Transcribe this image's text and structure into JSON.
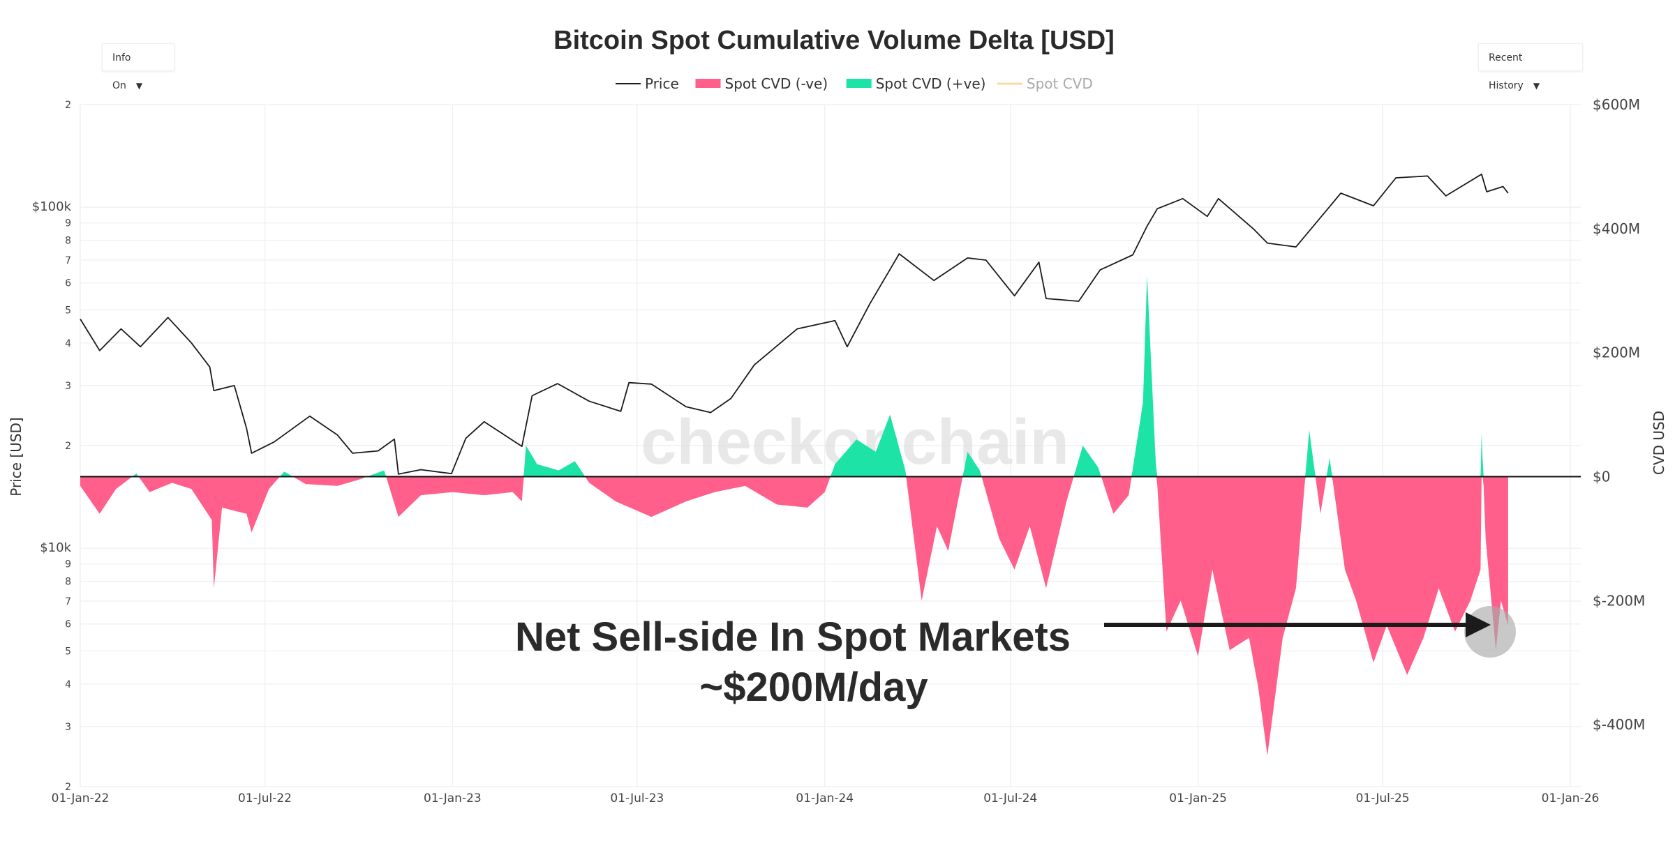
{
  "controls": {
    "info_label": "Info On",
    "history_label": "Recent History",
    "caret": "▼"
  },
  "chart_data": {
    "type": "area",
    "title": "Bitcoin Spot Cumulative Volume Delta [USD]",
    "watermark": "checkonchain",
    "legend": [
      {
        "name": "Price",
        "color": "#1a1a1a",
        "style": "line",
        "active": true
      },
      {
        "name": "Spot CVD (-ve)",
        "color": "#ff5f8a",
        "style": "bar",
        "active": true
      },
      {
        "name": "Spot CVD (+ve)",
        "color": "#1ee3a6",
        "style": "bar",
        "active": true
      },
      {
        "name": "Spot CVD",
        "color": "#fcd9a8",
        "style": "line",
        "active": false
      }
    ],
    "legend_position": "top-center",
    "grid": true,
    "x_axis": {
      "ticks": [
        "01-Jan-22",
        "01-Jul-22",
        "01-Jan-23",
        "01-Jul-23",
        "01-Jan-24",
        "01-Jul-24",
        "01-Jan-25",
        "01-Jul-25",
        "01-Jan-26"
      ]
    },
    "y_left": {
      "label": "Price [USD]",
      "scale": "log",
      "range": [
        2000,
        200000
      ],
      "ticks": [
        {
          "v": 2000,
          "t": "2"
        },
        {
          "v": 3000,
          "t": "3"
        },
        {
          "v": 4000,
          "t": "4"
        },
        {
          "v": 5000,
          "t": "5"
        },
        {
          "v": 6000,
          "t": "6"
        },
        {
          "v": 7000,
          "t": "7"
        },
        {
          "v": 8000,
          "t": "8"
        },
        {
          "v": 9000,
          "t": "9"
        },
        {
          "v": 10000,
          "t": "$10k"
        },
        {
          "v": 20000,
          "t": "2"
        },
        {
          "v": 30000,
          "t": "3"
        },
        {
          "v": 40000,
          "t": "4"
        },
        {
          "v": 50000,
          "t": "5"
        },
        {
          "v": 60000,
          "t": "6"
        },
        {
          "v": 70000,
          "t": "7"
        },
        {
          "v": 80000,
          "t": "8"
        },
        {
          "v": 90000,
          "t": "9"
        },
        {
          "v": 100000,
          "t": "$100k"
        },
        {
          "v": 200000,
          "t": "2"
        }
      ]
    },
    "y_right": {
      "label": "CVD USD",
      "range": [
        -500000000,
        600000000
      ],
      "ticks": [
        {
          "v": 600000000,
          "t": "$600M"
        },
        {
          "v": 400000000,
          "t": "$400M"
        },
        {
          "v": 200000000,
          "t": "$200M"
        },
        {
          "v": 0,
          "t": "$0"
        },
        {
          "v": -200000000,
          "t": "$-200M"
        },
        {
          "v": -400000000,
          "t": "$-400M"
        }
      ]
    },
    "price_series": {
      "name": "Price",
      "points": [
        [
          "2022-01-01",
          47000
        ],
        [
          "2022-01-20",
          38000
        ],
        [
          "2022-02-10",
          44000
        ],
        [
          "2022-03-01",
          39000
        ],
        [
          "2022-03-28",
          47500
        ],
        [
          "2022-04-20",
          40000
        ],
        [
          "2022-05-08",
          34000
        ],
        [
          "2022-05-12",
          29000
        ],
        [
          "2022-06-01",
          30000
        ],
        [
          "2022-06-13",
          22500
        ],
        [
          "2022-06-18",
          19000
        ],
        [
          "2022-07-10",
          20500
        ],
        [
          "2022-08-14",
          24400
        ],
        [
          "2022-09-10",
          21500
        ],
        [
          "2022-09-25",
          19000
        ],
        [
          "2022-10-20",
          19300
        ],
        [
          "2022-11-05",
          20900
        ],
        [
          "2022-11-09",
          16500
        ],
        [
          "2022-12-01",
          17000
        ],
        [
          "2022-12-31",
          16550
        ],
        [
          "2023-01-14",
          21000
        ],
        [
          "2023-02-01",
          23500
        ],
        [
          "2023-03-10",
          19900
        ],
        [
          "2023-03-20",
          28000
        ],
        [
          "2023-04-14",
          30400
        ],
        [
          "2023-05-15",
          27000
        ],
        [
          "2023-06-15",
          25200
        ],
        [
          "2023-06-23",
          30600
        ],
        [
          "2023-07-15",
          30300
        ],
        [
          "2023-08-18",
          26000
        ],
        [
          "2023-09-11",
          25000
        ],
        [
          "2023-10-01",
          27500
        ],
        [
          "2023-10-24",
          34500
        ],
        [
          "2023-12-05",
          44000
        ],
        [
          "2024-01-11",
          46500
        ],
        [
          "2024-01-23",
          39000
        ],
        [
          "2024-02-14",
          52000
        ],
        [
          "2024-03-14",
          73000
        ],
        [
          "2024-04-17",
          61000
        ],
        [
          "2024-05-20",
          71000
        ],
        [
          "2024-06-07",
          70000
        ],
        [
          "2024-07-05",
          55000
        ],
        [
          "2024-07-29",
          69000
        ],
        [
          "2024-08-05",
          54000
        ],
        [
          "2024-09-06",
          53000
        ],
        [
          "2024-09-27",
          65500
        ],
        [
          "2024-10-29",
          72500
        ],
        [
          "2024-11-12",
          88000
        ],
        [
          "2024-11-22",
          99000
        ],
        [
          "2024-12-17",
          106000
        ],
        [
          "2025-01-10",
          94000
        ],
        [
          "2025-01-21",
          106000
        ],
        [
          "2025-02-25",
          86000
        ],
        [
          "2025-03-10",
          78500
        ],
        [
          "2025-04-07",
          76500
        ],
        [
          "2025-05-21",
          110000
        ],
        [
          "2025-06-22",
          101000
        ],
        [
          "2025-07-14",
          122000
        ],
        [
          "2025-08-14",
          123500
        ],
        [
          "2025-09-01",
          108000
        ],
        [
          "2025-10-06",
          125000
        ],
        [
          "2025-10-11",
          111000
        ],
        [
          "2025-10-27",
          115000
        ],
        [
          "2025-11-01",
          110000
        ]
      ]
    },
    "cvd_series": {
      "name": "Spot CVD",
      "unit": "USD",
      "points": [
        [
          "2022-01-01",
          -15000000
        ],
        [
          "2022-01-20",
          -60000000
        ],
        [
          "2022-02-05",
          -20000000
        ],
        [
          "2022-02-25",
          5000000
        ],
        [
          "2022-03-10",
          -25000000
        ],
        [
          "2022-04-01",
          -10000000
        ],
        [
          "2022-04-20",
          -20000000
        ],
        [
          "2022-05-10",
          -70000000
        ],
        [
          "2022-05-12",
          -180000000
        ],
        [
          "2022-05-20",
          -50000000
        ],
        [
          "2022-06-13",
          -60000000
        ],
        [
          "2022-06-18",
          -90000000
        ],
        [
          "2022-07-05",
          -20000000
        ],
        [
          "2022-07-20",
          8000000
        ],
        [
          "2022-08-10",
          -12000000
        ],
        [
          "2022-09-10",
          -15000000
        ],
        [
          "2022-10-01",
          -5000000
        ],
        [
          "2022-10-26",
          10000000
        ],
        [
          "2022-11-09",
          -65000000
        ],
        [
          "2022-12-01",
          -30000000
        ],
        [
          "2023-01-01",
          -25000000
        ],
        [
          "2023-02-01",
          -30000000
        ],
        [
          "2023-03-01",
          -25000000
        ],
        [
          "2023-03-10",
          -40000000
        ],
        [
          "2023-03-14",
          50000000
        ],
        [
          "2023-03-25",
          20000000
        ],
        [
          "2023-04-15",
          10000000
        ],
        [
          "2023-05-01",
          25000000
        ],
        [
          "2023-05-15",
          -10000000
        ],
        [
          "2023-06-10",
          -40000000
        ],
        [
          "2023-07-15",
          -65000000
        ],
        [
          "2023-08-18",
          -40000000
        ],
        [
          "2023-09-15",
          -25000000
        ],
        [
          "2023-10-15",
          -15000000
        ],
        [
          "2023-11-15",
          -45000000
        ],
        [
          "2023-12-15",
          -50000000
        ],
        [
          "2024-01-01",
          -25000000
        ],
        [
          "2024-01-11",
          20000000
        ],
        [
          "2024-02-01",
          60000000
        ],
        [
          "2024-02-20",
          40000000
        ],
        [
          "2024-03-05",
          100000000
        ],
        [
          "2024-03-20",
          10000000
        ],
        [
          "2024-04-05",
          -200000000
        ],
        [
          "2024-04-20",
          -80000000
        ],
        [
          "2024-05-01",
          -120000000
        ],
        [
          "2024-05-20",
          40000000
        ],
        [
          "2024-06-01",
          10000000
        ],
        [
          "2024-06-20",
          -100000000
        ],
        [
          "2024-07-05",
          -150000000
        ],
        [
          "2024-07-20",
          -80000000
        ],
        [
          "2024-08-05",
          -180000000
        ],
        [
          "2024-08-25",
          -40000000
        ],
        [
          "2024-09-10",
          50000000
        ],
        [
          "2024-09-25",
          15000000
        ],
        [
          "2024-10-10",
          -60000000
        ],
        [
          "2024-10-25",
          -30000000
        ],
        [
          "2024-11-08",
          120000000
        ],
        [
          "2024-11-12",
          325000000
        ],
        [
          "2024-11-20",
          40000000
        ],
        [
          "2024-12-01",
          -250000000
        ],
        [
          "2024-12-15",
          -200000000
        ],
        [
          "2025-01-01",
          -290000000
        ],
        [
          "2025-01-15",
          -150000000
        ],
        [
          "2025-02-01",
          -280000000
        ],
        [
          "2025-02-20",
          -260000000
        ],
        [
          "2025-03-01",
          -340000000
        ],
        [
          "2025-03-10",
          -450000000
        ],
        [
          "2025-03-25",
          -260000000
        ],
        [
          "2025-04-07",
          -180000000
        ],
        [
          "2025-04-20",
          75000000
        ],
        [
          "2025-05-01",
          -60000000
        ],
        [
          "2025-05-10",
          30000000
        ],
        [
          "2025-05-25",
          -150000000
        ],
        [
          "2025-06-05",
          -200000000
        ],
        [
          "2025-06-22",
          -300000000
        ],
        [
          "2025-07-05",
          -240000000
        ],
        [
          "2025-07-25",
          -320000000
        ],
        [
          "2025-08-10",
          -260000000
        ],
        [
          "2025-08-25",
          -180000000
        ],
        [
          "2025-09-10",
          -250000000
        ],
        [
          "2025-09-25",
          -200000000
        ],
        [
          "2025-10-05",
          -150000000
        ],
        [
          "2025-10-06",
          70000000
        ],
        [
          "2025-10-10",
          -100000000
        ],
        [
          "2025-10-20",
          -280000000
        ],
        [
          "2025-10-25",
          -200000000
        ],
        [
          "2025-11-01",
          -240000000
        ]
      ]
    },
    "annotations": [
      {
        "text_lines": [
          "Net Sell-side In Spot Markets",
          "~$200M/day"
        ],
        "arrow_to_date": "2025-10-25",
        "arrow_to_value": -240000000
      }
    ]
  }
}
